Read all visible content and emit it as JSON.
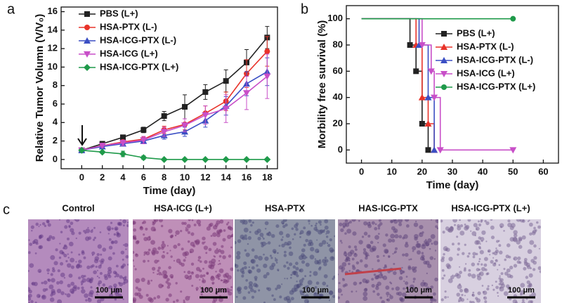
{
  "chart_data": [
    {
      "type": "line",
      "panel": "a",
      "xlabel": "Time (day)",
      "ylabel": "Relative Tumor Volumn (V/V₀)",
      "x": [
        0,
        2,
        4,
        6,
        8,
        10,
        12,
        14,
        16,
        18
      ],
      "xlim": [
        -2,
        19
      ],
      "xticks": [
        0,
        2,
        4,
        6,
        8,
        10,
        12,
        14,
        16,
        18
      ],
      "ylim": [
        -1,
        16.5
      ],
      "yticks": [
        0,
        2,
        4,
        6,
        8,
        10,
        12,
        14,
        16
      ],
      "legend": "upper left",
      "series": [
        {
          "name": "PBS (L+)",
          "color": "#222222",
          "marker": "square",
          "values": [
            1,
            1.7,
            2.4,
            3.2,
            4.7,
            5.7,
            7.3,
            8.5,
            10.5,
            13.2
          ],
          "errors": [
            0.1,
            0.2,
            0.2,
            0.3,
            0.5,
            1.3,
            0.8,
            1.2,
            1.4,
            1.2
          ]
        },
        {
          "name": "HSA-PTX (L-)",
          "color": "#e8332a",
          "marker": "circle",
          "values": [
            1,
            1.5,
            1.9,
            2.2,
            3.2,
            3.8,
            5.0,
            6.3,
            9.3,
            11.7
          ],
          "errors": [
            0.1,
            0.2,
            0.2,
            0.3,
            0.4,
            0.6,
            0.8,
            1.0,
            1.5,
            1.6
          ]
        },
        {
          "name": "HSA-ICG-PTX (L-)",
          "color": "#3b4fc4",
          "marker": "triangle-up",
          "values": [
            1,
            1.4,
            1.7,
            2.0,
            2.6,
            3.0,
            4.2,
            5.8,
            8.2,
            9.5
          ],
          "errors": [
            0.1,
            0.2,
            0.2,
            0.3,
            0.4,
            0.5,
            0.7,
            1.0,
            1.3,
            1.5
          ]
        },
        {
          "name": "HSA-ICG (L+)",
          "color": "#c84fc8",
          "marker": "triangle-down",
          "values": [
            1,
            1.5,
            1.8,
            2.1,
            3.0,
            3.7,
            4.8,
            5.5,
            7.2,
            9.0
          ],
          "errors": [
            0.1,
            0.2,
            0.3,
            0.4,
            0.5,
            0.7,
            1.0,
            1.5,
            1.8,
            2.4
          ]
        },
        {
          "name": "HSA-ICG-PTX (L+)",
          "color": "#1f9a4a",
          "marker": "diamond",
          "values": [
            1,
            0.8,
            0.6,
            0.2,
            0,
            0,
            0,
            0,
            0,
            0
          ],
          "errors": [
            0.1,
            0.1,
            0.3,
            0.2,
            0,
            0,
            0,
            0,
            0,
            0
          ]
        }
      ]
    },
    {
      "type": "step",
      "panel": "b",
      "xlabel": "Time (day)",
      "ylabel": "Morbility free survival (%)",
      "xlim": [
        -5,
        65
      ],
      "xticks": [
        0,
        10,
        20,
        30,
        40,
        50,
        60
      ],
      "ylim": [
        -10,
        110
      ],
      "yticks": [
        0,
        20,
        40,
        60,
        80,
        100
      ],
      "legend": "upper right",
      "series": [
        {
          "name": "PBS (L+)",
          "color": "#222222",
          "marker": "square",
          "x": [
            0,
            16,
            18,
            20,
            22
          ],
          "values": [
            100,
            80,
            60,
            20,
            0
          ]
        },
        {
          "name": "HSA-PTX (L-)",
          "color": "#e8332a",
          "marker": "triangle-up",
          "x": [
            0,
            18,
            20,
            22,
            24
          ],
          "values": [
            100,
            80,
            40,
            20,
            0
          ]
        },
        {
          "name": "HSA-ICG-PTX (L-)",
          "color": "#3b4fc4",
          "marker": "triangle-up",
          "x": [
            0,
            19,
            22,
            24
          ],
          "values": [
            100,
            80,
            40,
            0
          ]
        },
        {
          "name": "HSA-ICG (L+)",
          "color": "#c84fc8",
          "marker": "triangle-down",
          "x": [
            0,
            20,
            23,
            24,
            26,
            50
          ],
          "values": [
            100,
            80,
            60,
            40,
            0,
            0
          ]
        },
        {
          "name": "HSA-ICG-PTX (L+)",
          "color": "#1f9a4a",
          "marker": "circle",
          "x": [
            0,
            50
          ],
          "values": [
            100,
            100
          ]
        }
      ]
    }
  ],
  "histology": {
    "panel": "c",
    "titles": [
      "Control",
      "HSA-ICG (L+)",
      "HSA-PTX",
      "HAS-ICG-PTX",
      "HSA-ICG-PTX (L+)"
    ],
    "scale_bar": "100 μm"
  }
}
